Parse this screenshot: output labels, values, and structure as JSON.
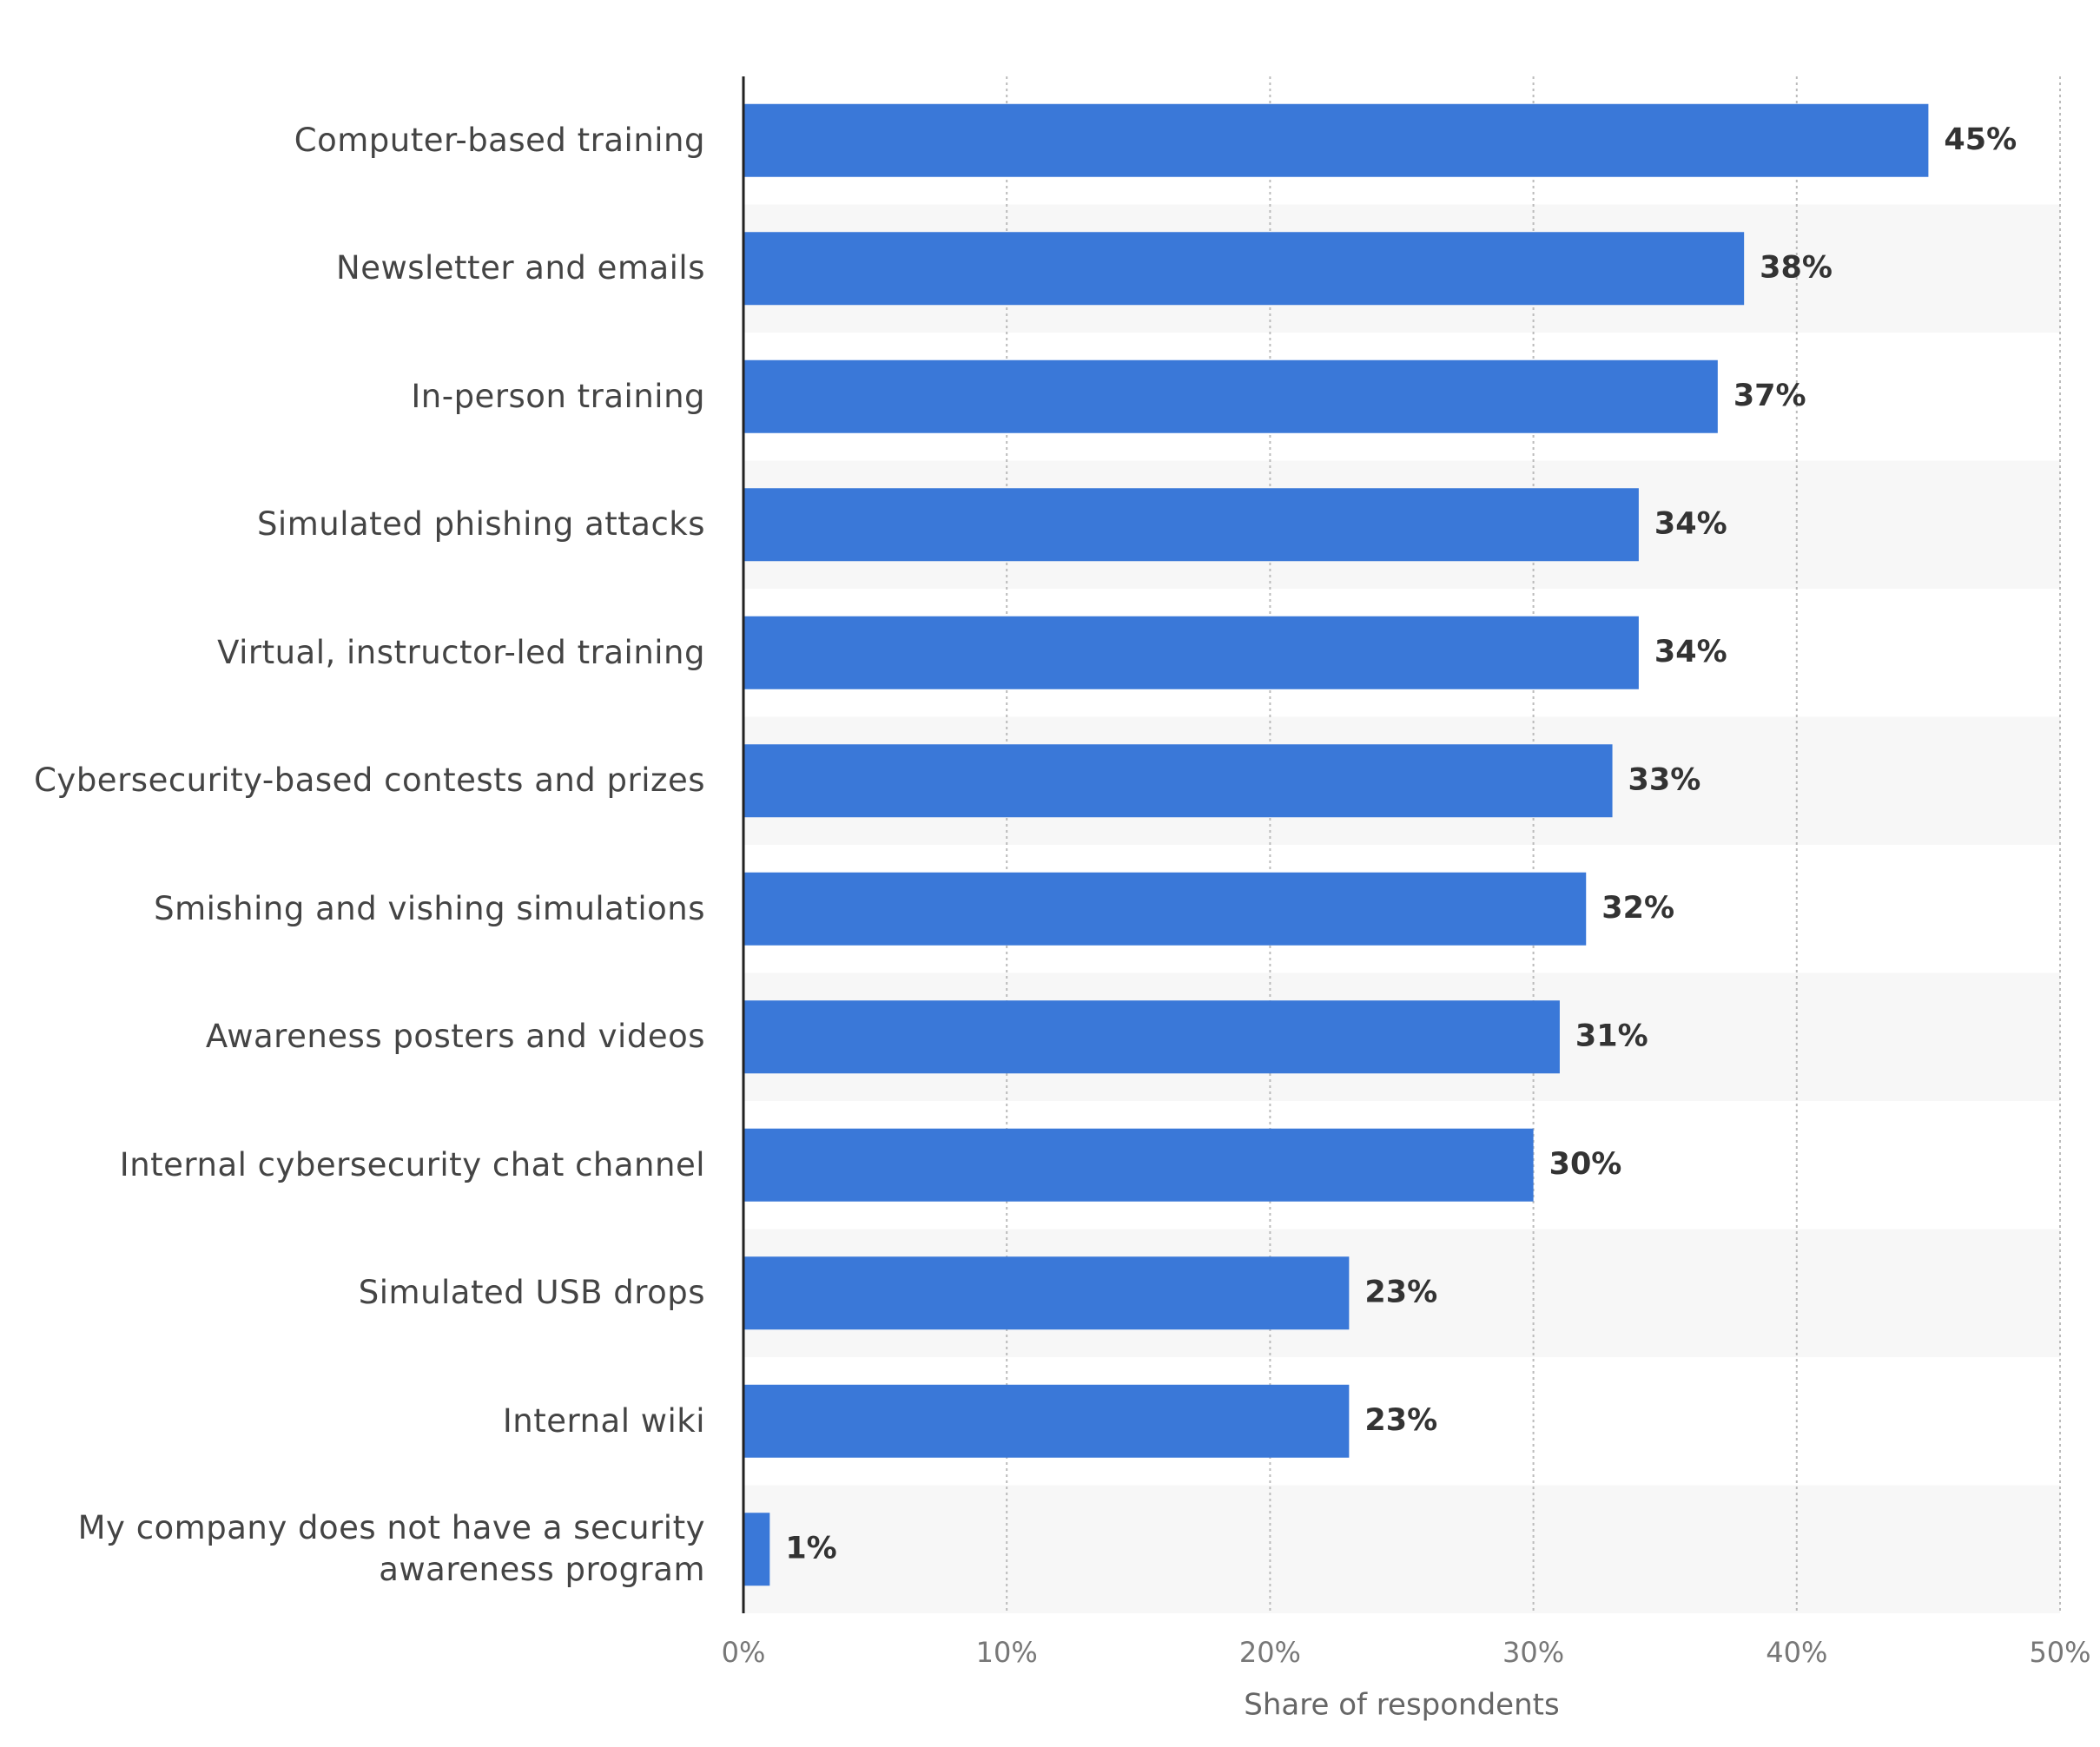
{
  "chart_data": {
    "type": "bar",
    "orientation": "horizontal",
    "x_label": "Share of respondents",
    "categories": [
      "Computer-based training",
      "Newsletter and emails",
      "In-person training",
      "Simulated phishing attacks",
      "Virtual, instructor-led training",
      "Cybersecurity-based contests and prizes",
      "Smishing and vishing simulations",
      "Awareness posters and videos",
      "Internal cybersecurity chat channel",
      "Simulated USB drops",
      "Internal wiki",
      "My company does not have a security awareness program"
    ],
    "values": [
      45,
      38,
      37,
      34,
      34,
      33,
      32,
      31,
      30,
      23,
      23,
      1
    ],
    "value_labels": [
      "45%",
      "38%",
      "37%",
      "34%",
      "34%",
      "33%",
      "32%",
      "31%",
      "30%",
      "23%",
      "23%",
      "1%"
    ],
    "color": "#3a78d8",
    "xlim": [
      0,
      50
    ],
    "xticks": [
      {
        "value": 0,
        "label": "0%"
      },
      {
        "value": 10,
        "label": "10%"
      },
      {
        "value": 20,
        "label": "20%"
      },
      {
        "value": 30,
        "label": "30%"
      },
      {
        "value": 40,
        "label": "40%"
      },
      {
        "value": 50,
        "label": "50%"
      }
    ],
    "grid": true
  }
}
